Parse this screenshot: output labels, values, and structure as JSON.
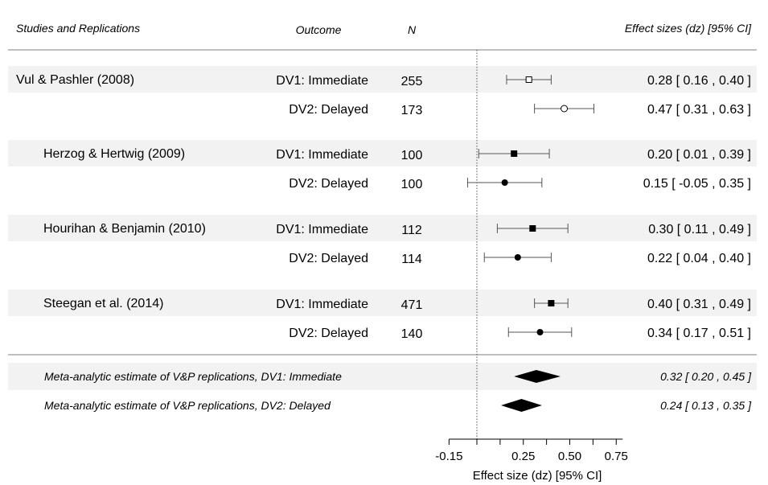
{
  "chart_data": {
    "type": "forest",
    "header": {
      "study": "Studies and Replications",
      "outcome": "Outcome",
      "n": "N",
      "effect": "Effect sizes (dz) [95% CI]"
    },
    "xlabel": "Effect size (dz) [95% CI]",
    "xlim": [
      -0.15,
      0.75
    ],
    "xticks": [
      -0.15,
      0.25,
      0.5,
      0.75
    ],
    "xtick_labels": [
      "-0.15",
      "0.25",
      "0.50",
      "0.75"
    ],
    "reference_line": 0,
    "groups": [
      {
        "study": "Vul & Pashler (2008)",
        "indent": false,
        "rows": [
          {
            "outcome": "DV1: Immediate",
            "n": "255",
            "est": 0.28,
            "lo": 0.16,
            "hi": 0.4,
            "ci_text": "0.28 [  0.16 , 0.40 ]",
            "marker": "square-open"
          },
          {
            "outcome": "DV2: Delayed",
            "n": "173",
            "est": 0.47,
            "lo": 0.31,
            "hi": 0.63,
            "ci_text": "0.47 [  0.31 , 0.63 ]",
            "marker": "circle-open"
          }
        ]
      },
      {
        "study": "Herzog & Hertwig (2009)",
        "indent": true,
        "rows": [
          {
            "outcome": "DV1: Immediate",
            "n": "100",
            "est": 0.2,
            "lo": 0.01,
            "hi": 0.39,
            "ci_text": "0.20 [  0.01 , 0.39 ]",
            "marker": "square"
          },
          {
            "outcome": "DV2: Delayed",
            "n": "100",
            "est": 0.15,
            "lo": -0.05,
            "hi": 0.35,
            "ci_text": "0.15 [ -0.05 , 0.35 ]",
            "marker": "circle"
          }
        ]
      },
      {
        "study": "Hourihan & Benjamin (2010)",
        "indent": true,
        "rows": [
          {
            "outcome": "DV1: Immediate",
            "n": "112",
            "est": 0.3,
            "lo": 0.11,
            "hi": 0.49,
            "ci_text": "0.30 [  0.11 , 0.49 ]",
            "marker": "square"
          },
          {
            "outcome": "DV2: Delayed",
            "n": "114",
            "est": 0.22,
            "lo": 0.04,
            "hi": 0.4,
            "ci_text": "0.22 [  0.04 , 0.40 ]",
            "marker": "circle"
          }
        ]
      },
      {
        "study": "Steegan et al. (2014)",
        "indent": true,
        "rows": [
          {
            "outcome": "DV1: Immediate",
            "n": "471",
            "est": 0.4,
            "lo": 0.31,
            "hi": 0.49,
            "ci_text": "0.40 [  0.31 , 0.49 ]",
            "marker": "square"
          },
          {
            "outcome": "DV2: Delayed",
            "n": "140",
            "est": 0.34,
            "lo": 0.17,
            "hi": 0.51,
            "ci_text": "0.34 [  0.17 , 0.51 ]",
            "marker": "circle"
          }
        ]
      }
    ],
    "meta": [
      {
        "label": "Meta-analytic estimate of V&P replications, DV1: Immediate",
        "est": 0.32,
        "lo": 0.2,
        "hi": 0.45,
        "ci_text": "0.32 [ 0.20 , 0.45 ]"
      },
      {
        "label": "Meta-analytic estimate of V&P replications, DV2: Delayed",
        "est": 0.24,
        "lo": 0.13,
        "hi": 0.35,
        "ci_text": "0.24 [ 0.13 , 0.35 ]"
      }
    ],
    "colors": {
      "band": "#f2f2f2",
      "rule": "#7f7f7f",
      "mark": "#000000",
      "whisker": "#555555"
    }
  }
}
